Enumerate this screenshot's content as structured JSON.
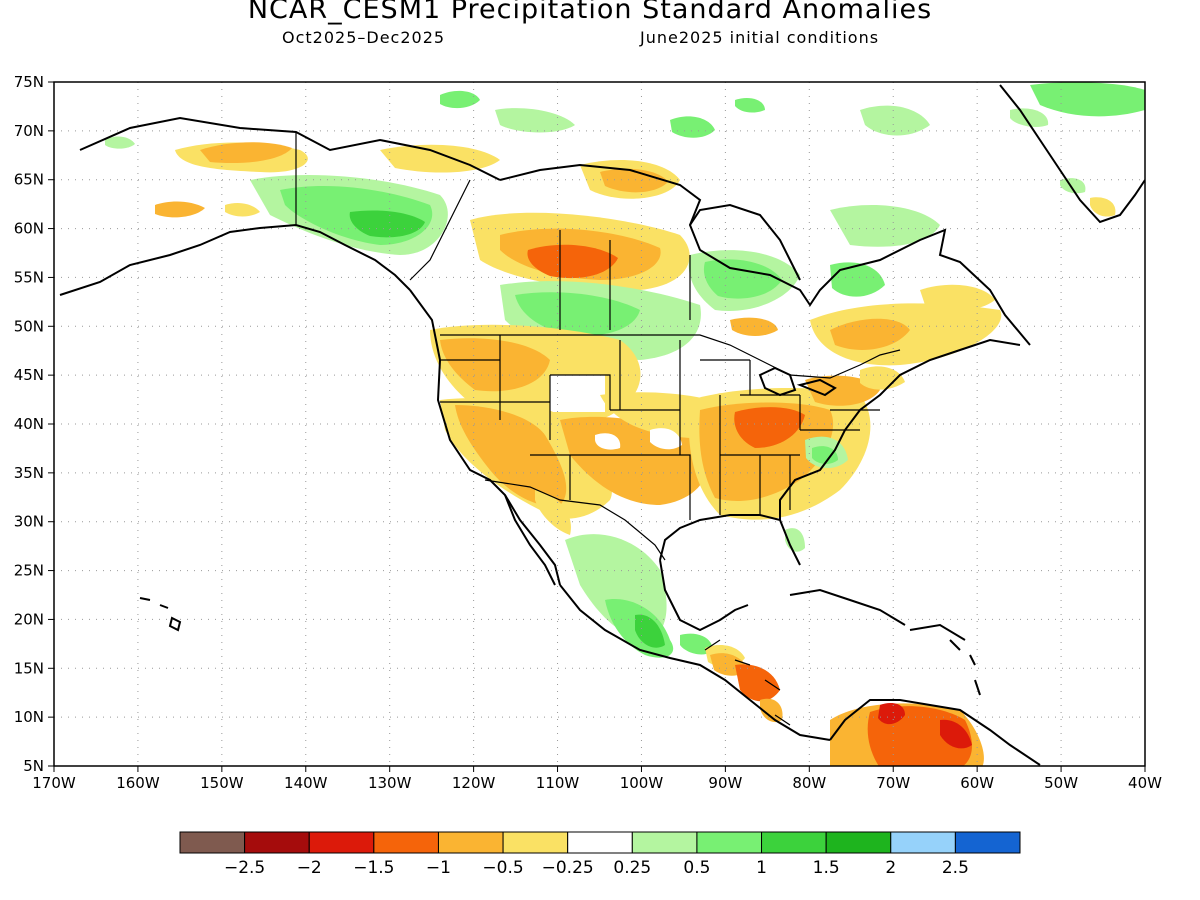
{
  "title": "NCAR_CESM1 Precipitation Standard Anomalies",
  "subtitle_left": "Oct2025–Dec2025",
  "subtitle_right": "June2025 initial conditions",
  "map": {
    "lon_ticks": [
      "170W",
      "160W",
      "150W",
      "140W",
      "130W",
      "120W",
      "110W",
      "100W",
      "90W",
      "80W",
      "70W",
      "60W",
      "50W",
      "40W"
    ],
    "lat_ticks": [
      "75N",
      "70N",
      "65N",
      "60N",
      "55N",
      "50N",
      "45N",
      "40N",
      "35N",
      "30N",
      "25N",
      "20N",
      "15N",
      "10N",
      "5N"
    ],
    "lon_range": [
      -170,
      -40
    ],
    "lat_range": [
      5,
      75
    ],
    "gridlines": true
  },
  "colorbar": {
    "colors": [
      "#7f5a4f",
      "#a50c0c",
      "#dc1a0a",
      "#f5640a",
      "#fab432",
      "#fae164",
      "#ffffff",
      "#b4f5a0",
      "#78f073",
      "#3cd23c",
      "#1eb41e",
      "#96d2fa",
      "#1464d2"
    ],
    "labels": [
      "−2.5",
      "−2",
      "−1.5",
      "−1",
      "−0.5",
      "−0.25",
      "0.25",
      "0.5",
      "1",
      "1.5",
      "2",
      "2.5"
    ]
  }
}
